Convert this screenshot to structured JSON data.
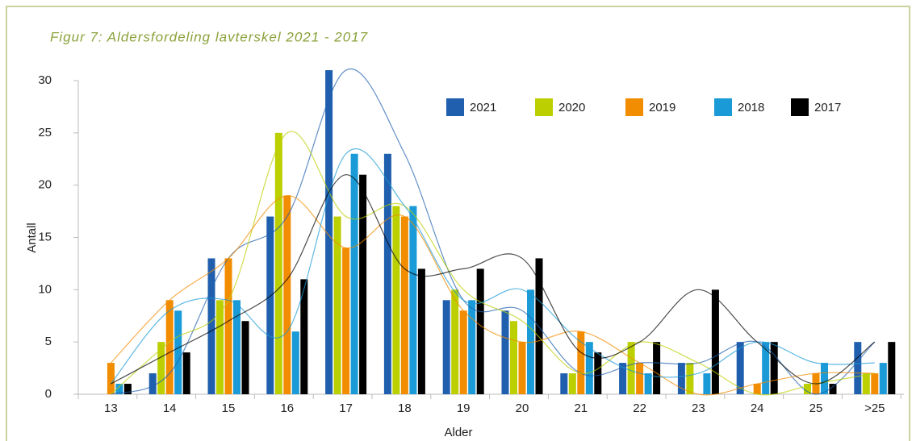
{
  "chart_data": {
    "type": "bar",
    "title": "Figur 7: Aldersfordeling lavterskel 2021 - 2017",
    "x_label": "Alder",
    "y_label": "Antall",
    "categories": [
      "13",
      "14",
      "15",
      "16",
      "17",
      "18",
      "19",
      "20",
      "21",
      "22",
      "23",
      "24",
      "25",
      ">25"
    ],
    "series": [
      {
        "name": "2021",
        "color": "#1f5fae",
        "values": [
          0,
          2,
          13,
          17,
          31,
          23,
          9,
          8,
          2,
          3,
          3,
          5,
          0,
          5
        ]
      },
      {
        "name": "2020",
        "color": "#bccf00",
        "values": [
          0,
          5,
          9,
          25,
          17,
          18,
          10,
          7,
          2,
          5,
          3,
          0,
          1,
          2
        ]
      },
      {
        "name": "2019",
        "color": "#f28c00",
        "values": [
          3,
          9,
          13,
          19,
          14,
          17,
          8,
          5,
          6,
          3,
          0,
          1,
          2,
          2
        ]
      },
      {
        "name": "2018",
        "color": "#1a9ad6",
        "values": [
          1,
          8,
          9,
          6,
          23,
          18,
          9,
          10,
          5,
          2,
          2,
          5,
          3,
          3
        ]
      },
      {
        "name": "2017",
        "color": "#000000",
        "values": [
          1,
          4,
          7,
          11,
          21,
          12,
          12,
          13,
          4,
          5,
          10,
          5,
          1,
          5
        ]
      }
    ],
    "ylim": [
      0,
      30
    ],
    "yticks": [
      0,
      5,
      10,
      15,
      20,
      25,
      30
    ],
    "trendline": true,
    "legend": "top-right"
  }
}
